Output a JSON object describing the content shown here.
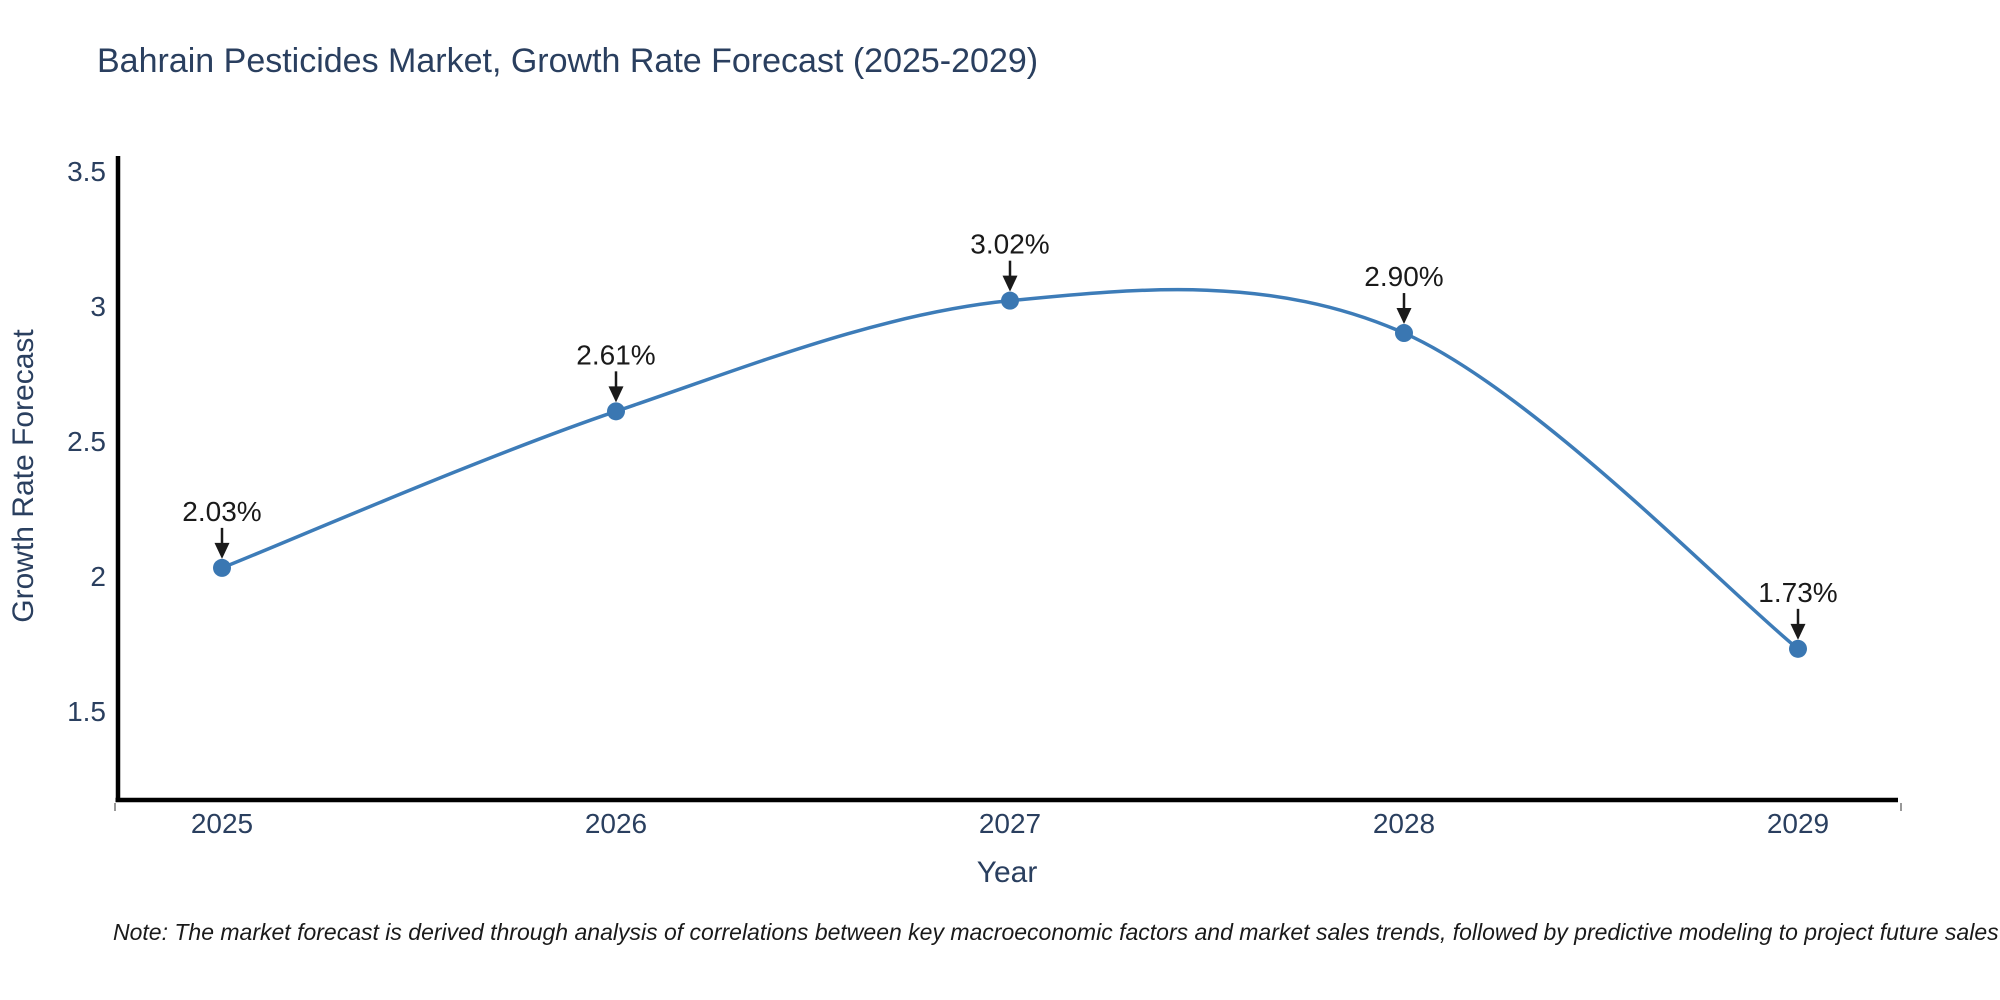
{
  "page": {
    "note": "Note: The market forecast is derived through analysis of correlations between key macroeconomic factors and market sales trends, followed by predictive modeling to project future sales"
  },
  "chart_data": {
    "type": "line",
    "title": "Bahrain Pesticides Market, Growth Rate Forecast (2025-2029)",
    "xlabel": "Year",
    "ylabel": "Growth Rate Forecast",
    "categories": [
      "2025",
      "2026",
      "2027",
      "2028",
      "2029"
    ],
    "series": [
      {
        "name": "Growth Rate Forecast",
        "values": [
          2.03,
          2.61,
          3.02,
          2.9,
          1.73
        ]
      }
    ],
    "point_labels": [
      "2.03%",
      "2.61%",
      "3.02%",
      "2.90%",
      "1.73%"
    ],
    "ytick_labels": [
      "1.5",
      "2",
      "2.5",
      "3",
      "3.5"
    ],
    "ytick_values": [
      1.5,
      2.0,
      2.5,
      3.0,
      3.5
    ],
    "ylim": [
      1.17,
      3.556
    ],
    "line_shape": "spline",
    "grid": false,
    "legend": "none",
    "annotations_arrows": true,
    "colors": {
      "line": "#3d7cb8",
      "marker": "#3a77b2",
      "axis": "#000000",
      "end_tick": "#999999",
      "tick_text": "#2a3f5f",
      "annotation_text": "#1a1a1a"
    }
  }
}
